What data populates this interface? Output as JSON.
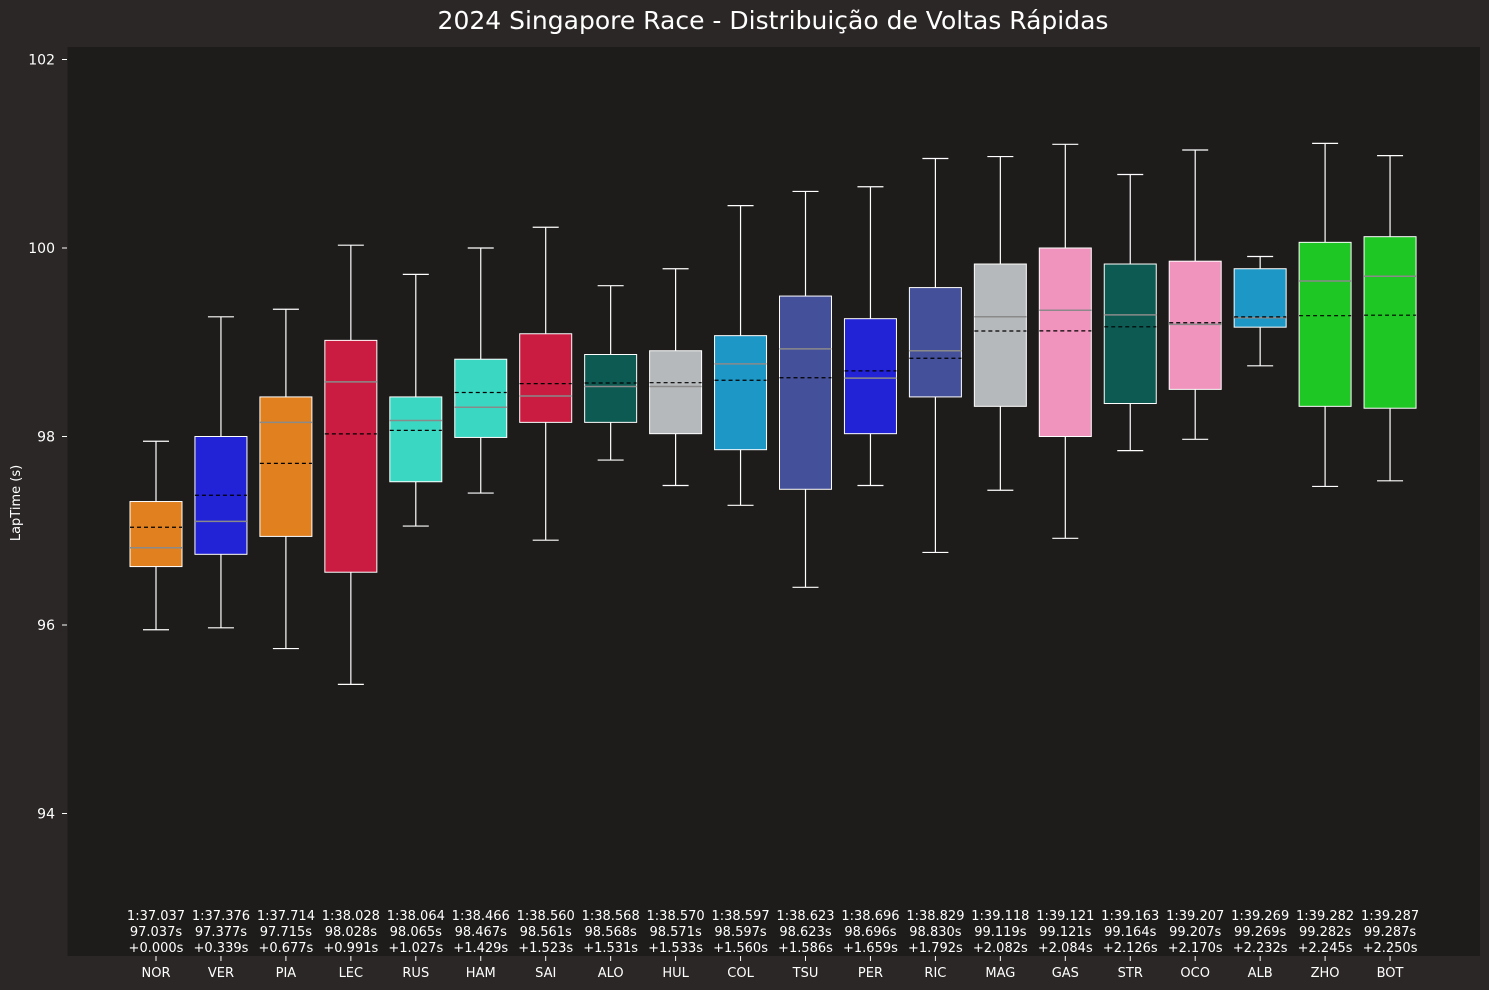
{
  "chart_data": {
    "type": "box",
    "title": "2024 Singapore Race - Distribuição de Voltas Rápidas",
    "xlabel": "",
    "ylabel": "LapTime (s)",
    "ylim": [
      92.5,
      102.2
    ],
    "yticks": [
      94,
      96,
      98,
      100,
      102
    ],
    "grid": false,
    "legend": "none",
    "background": "#1e1c1b",
    "figure_background": "#2b2726",
    "series": [
      {
        "driver": "NOR",
        "color": "#e0801f",
        "whisker_low": 95.95,
        "q1": 96.62,
        "median": 96.82,
        "q3": 97.31,
        "whisker_high": 97.95,
        "mean": 97.037,
        "lap": "1:37.037",
        "seconds": "97.037s",
        "gap": "+0.000s"
      },
      {
        "driver": "VER",
        "color": "#2222d6",
        "whisker_low": 95.97,
        "q1": 96.75,
        "median": 97.1,
        "q3": 98.0,
        "whisker_high": 99.27,
        "mean": 97.377,
        "lap": "1:37.376",
        "seconds": "97.377s",
        "gap": "+0.339s"
      },
      {
        "driver": "PIA",
        "color": "#e0801f",
        "whisker_low": 95.75,
        "q1": 96.94,
        "median": 98.15,
        "q3": 98.42,
        "whisker_high": 99.35,
        "mean": 97.715,
        "lap": "1:37.714",
        "seconds": "97.715s",
        "gap": "+0.677s"
      },
      {
        "driver": "LEC",
        "color": "#c91c40",
        "whisker_low": 95.37,
        "q1": 96.56,
        "median": 98.58,
        "q3": 99.02,
        "whisker_high": 100.03,
        "mean": 98.028,
        "lap": "1:38.028",
        "seconds": "98.028s",
        "gap": "+0.991s"
      },
      {
        "driver": "RUS",
        "color": "#3ad8c2",
        "whisker_low": 97.05,
        "q1": 97.52,
        "median": 98.17,
        "q3": 98.42,
        "whisker_high": 99.72,
        "mean": 98.065,
        "lap": "1:38.064",
        "seconds": "98.065s",
        "gap": "+1.027s"
      },
      {
        "driver": "HAM",
        "color": "#3ad8c2",
        "whisker_low": 97.4,
        "q1": 97.99,
        "median": 98.31,
        "q3": 98.82,
        "whisker_high": 100.0,
        "mean": 98.467,
        "lap": "1:38.466",
        "seconds": "98.467s",
        "gap": "+1.429s"
      },
      {
        "driver": "SAI",
        "color": "#c91c40",
        "whisker_low": 96.9,
        "q1": 98.15,
        "median": 98.43,
        "q3": 99.09,
        "whisker_high": 100.22,
        "mean": 98.561,
        "lap": "1:38.560",
        "seconds": "98.561s",
        "gap": "+1.523s"
      },
      {
        "driver": "ALO",
        "color": "#0d5a53",
        "whisker_low": 97.75,
        "q1": 98.15,
        "median": 98.53,
        "q3": 98.87,
        "whisker_high": 99.6,
        "mean": 98.568,
        "lap": "1:38.568",
        "seconds": "98.568s",
        "gap": "+1.531s"
      },
      {
        "driver": "HUL",
        "color": "#b6b9bb",
        "whisker_low": 97.48,
        "q1": 98.03,
        "median": 98.53,
        "q3": 98.91,
        "whisker_high": 99.78,
        "mean": 98.571,
        "lap": "1:38.570",
        "seconds": "98.571s",
        "gap": "+1.533s"
      },
      {
        "driver": "COL",
        "color": "#1d97c5",
        "whisker_low": 97.27,
        "q1": 97.86,
        "median": 98.77,
        "q3": 99.07,
        "whisker_high": 100.45,
        "mean": 98.597,
        "lap": "1:38.597",
        "seconds": "98.597s",
        "gap": "+1.560s"
      },
      {
        "driver": "TSU",
        "color": "#45509b",
        "whisker_low": 96.4,
        "q1": 97.44,
        "median": 98.93,
        "q3": 99.49,
        "whisker_high": 100.6,
        "mean": 98.623,
        "lap": "1:38.623",
        "seconds": "98.623s",
        "gap": "+1.586s"
      },
      {
        "driver": "PER",
        "color": "#2222d6",
        "whisker_low": 97.48,
        "q1": 98.03,
        "median": 98.62,
        "q3": 99.25,
        "whisker_high": 100.65,
        "mean": 98.696,
        "lap": "1:38.696",
        "seconds": "98.696s",
        "gap": "+1.659s"
      },
      {
        "driver": "RIC",
        "color": "#45509b",
        "whisker_low": 96.77,
        "q1": 98.42,
        "median": 98.91,
        "q3": 99.58,
        "whisker_high": 100.95,
        "mean": 98.83,
        "lap": "1:38.829",
        "seconds": "98.830s",
        "gap": "+1.792s"
      },
      {
        "driver": "MAG",
        "color": "#b6b9bb",
        "whisker_low": 97.43,
        "q1": 98.32,
        "median": 99.27,
        "q3": 99.83,
        "whisker_high": 100.97,
        "mean": 99.119,
        "lap": "1:39.118",
        "seconds": "99.119s",
        "gap": "+2.082s"
      },
      {
        "driver": "GAS",
        "color": "#f093bd",
        "whisker_low": 96.92,
        "q1": 98.0,
        "median": 99.34,
        "q3": 100.0,
        "whisker_high": 101.1,
        "mean": 99.121,
        "lap": "1:39.121",
        "seconds": "99.121s",
        "gap": "+2.084s"
      },
      {
        "driver": "STR",
        "color": "#0d5a53",
        "whisker_low": 97.85,
        "q1": 98.35,
        "median": 99.29,
        "q3": 99.83,
        "whisker_high": 100.78,
        "mean": 99.164,
        "lap": "1:39.163",
        "seconds": "99.164s",
        "gap": "+2.126s"
      },
      {
        "driver": "OCO",
        "color": "#f093bd",
        "whisker_low": 97.97,
        "q1": 98.5,
        "median": 99.19,
        "q3": 99.86,
        "whisker_high": 101.04,
        "mean": 99.207,
        "lap": "1:39.207",
        "seconds": "99.207s",
        "gap": "+2.170s"
      },
      {
        "driver": "ALB",
        "color": "#1d97c5",
        "whisker_low": 98.75,
        "q1": 99.16,
        "median": 99.26,
        "q3": 99.78,
        "whisker_high": 99.91,
        "mean": 99.269,
        "lap": "1:39.269",
        "seconds": "99.269s",
        "gap": "+2.232s"
      },
      {
        "driver": "ZHO",
        "color": "#1fc724",
        "whisker_low": 97.47,
        "q1": 98.32,
        "median": 99.65,
        "q3": 100.06,
        "whisker_high": 101.11,
        "mean": 99.282,
        "lap": "1:39.282",
        "seconds": "99.282s",
        "gap": "+2.245s"
      },
      {
        "driver": "BOT",
        "color": "#1fc724",
        "whisker_low": 97.53,
        "q1": 98.3,
        "median": 99.7,
        "q3": 100.12,
        "whisker_high": 100.98,
        "mean": 99.287,
        "lap": "1:39.287",
        "seconds": "99.287s",
        "gap": "+2.250s"
      }
    ]
  }
}
